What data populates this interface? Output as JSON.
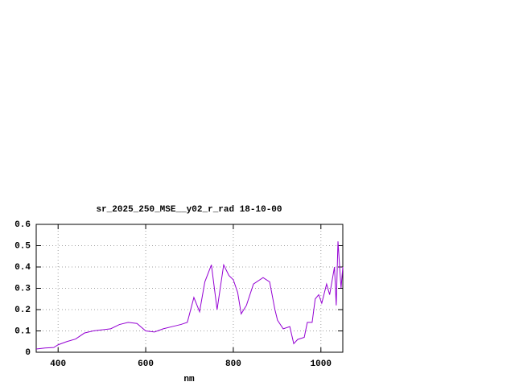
{
  "chart_data": {
    "type": "line",
    "title": "sr_2025_250_MSE__y02_r_rad 18-10-00",
    "xlabel": "nm",
    "x": [
      350,
      370,
      390,
      400,
      420,
      440,
      460,
      480,
      500,
      520,
      540,
      560,
      580,
      600,
      620,
      640,
      660,
      680,
      695,
      710,
      723,
      735,
      750,
      763,
      778,
      790,
      800,
      810,
      818,
      830,
      846,
      868,
      883,
      895,
      901,
      914,
      929,
      938,
      947,
      962,
      969,
      980,
      987,
      995,
      1002,
      1013,
      1020,
      1031,
      1035,
      1039,
      1046,
      1050
    ],
    "series": [
      {
        "name": "sr_2025_250_MSE__y02_r_rad",
        "color": "#9400d3",
        "values": [
          0.015,
          0.02,
          0.022,
          0.035,
          0.05,
          0.062,
          0.09,
          0.1,
          0.105,
          0.11,
          0.13,
          0.14,
          0.135,
          0.1,
          0.095,
          0.11,
          0.12,
          0.13,
          0.14,
          0.257,
          0.19,
          0.33,
          0.41,
          0.2,
          0.41,
          0.36,
          0.34,
          0.28,
          0.18,
          0.22,
          0.32,
          0.35,
          0.33,
          0.2,
          0.15,
          0.11,
          0.12,
          0.04,
          0.06,
          0.07,
          0.14,
          0.14,
          0.25,
          0.27,
          0.23,
          0.32,
          0.27,
          0.4,
          0.22,
          0.52,
          0.3,
          0.4
        ]
      }
    ],
    "xlim": [
      350,
      1050
    ],
    "ylim": [
      0,
      0.6
    ],
    "xticks": [
      400,
      600,
      800,
      1000
    ],
    "yticks": [
      0,
      0.1,
      0.2,
      0.3,
      0.4,
      0.5,
      0.6
    ],
    "grid": true
  }
}
